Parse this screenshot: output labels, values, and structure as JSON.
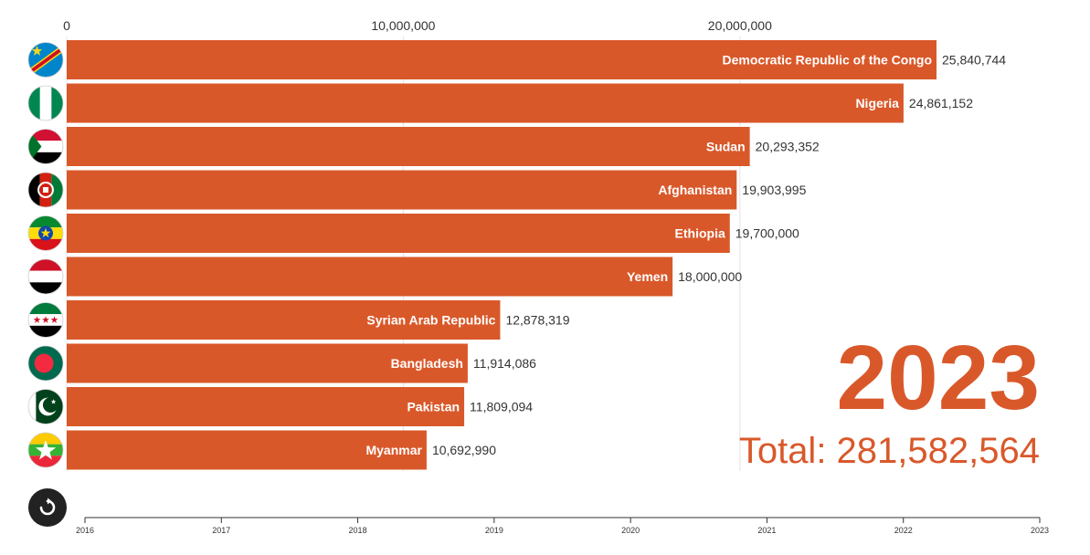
{
  "chart_data": {
    "type": "bar",
    "orientation": "horizontal",
    "categories": [
      "Democratic Republic of the Congo",
      "Nigeria",
      "Sudan",
      "Afghanistan",
      "Ethiopia",
      "Yemen",
      "Syrian Arab Republic",
      "Bangladesh",
      "Pakistan",
      "Myanmar"
    ],
    "values": [
      25840744,
      24861152,
      20293352,
      19903995,
      19700000,
      18000000,
      12878319,
      11914086,
      11809094,
      10692990
    ],
    "value_labels": [
      "25,840,744",
      "24,861,152",
      "20,293,352",
      "19,903,995",
      "19,700,000",
      "18,000,000",
      "12,878,319",
      "11,914,086",
      "11,809,094",
      "10,692,990"
    ],
    "x_ticks": [
      0,
      10000000,
      20000000
    ],
    "x_tick_labels": [
      "0",
      "10,000,000",
      "20,000,000"
    ],
    "xlim": [
      0,
      26000000
    ],
    "grid": true,
    "bar_color": "#d9582a",
    "year": "2023",
    "total_label": "Total: 281,582,564",
    "timeline": {
      "years": [
        "2016",
        "2017",
        "2018",
        "2019",
        "2020",
        "2021",
        "2022",
        "2023"
      ],
      "current": "2023"
    },
    "flags": [
      "drc-flag-icon",
      "nigeria-flag-icon",
      "sudan-flag-icon",
      "afghanistan-flag-icon",
      "ethiopia-flag-icon",
      "yemen-flag-icon",
      "syria-flag-icon",
      "bangladesh-flag-icon",
      "pakistan-flag-icon",
      "myanmar-flag-icon"
    ]
  },
  "colors": {
    "accent": "#d9582a",
    "year_text": "#d9582a",
    "total_text": "#d9582a",
    "replay_bg": "#222222"
  },
  "controls": {
    "replay_icon": "replay-icon"
  }
}
